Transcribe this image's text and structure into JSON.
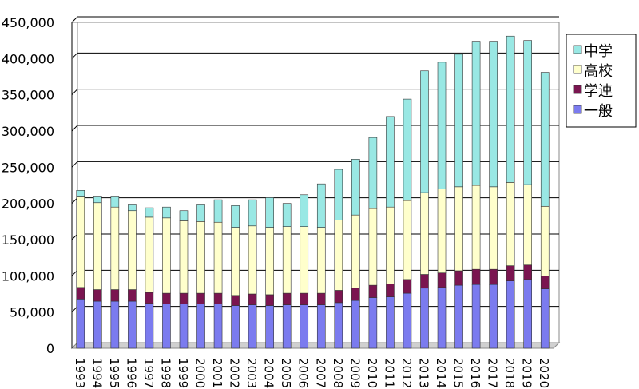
{
  "chart_data": {
    "type": "bar",
    "stacked": true,
    "grid": true,
    "legend_position": "right",
    "ylim": [
      0,
      450000
    ],
    "yticks": [
      "0",
      "50,000",
      "100,000",
      "150,000",
      "200,000",
      "250,000",
      "300,000",
      "350,000",
      "400,000",
      "450,000"
    ],
    "categories": [
      "1993",
      "1994",
      "1995",
      "1996",
      "1997",
      "1998",
      "1999",
      "2000",
      "2001",
      "2002",
      "2003",
      "2004",
      "2005",
      "2006",
      "2007",
      "2008",
      "2009",
      "2010",
      "2011",
      "2012",
      "2013",
      "2014",
      "2015",
      "2016",
      "2017",
      "2018",
      "2019",
      "2020"
    ],
    "series": [
      {
        "name": "一般",
        "color": "#7b7bef",
        "values": [
          68000,
          65000,
          65000,
          65000,
          62000,
          61000,
          61000,
          61000,
          61000,
          59000,
          60000,
          59000,
          60000,
          60000,
          60000,
          63000,
          66000,
          70000,
          71000,
          76000,
          83000,
          84000,
          87000,
          88000,
          88000,
          93000,
          95000,
          82000
        ]
      },
      {
        "name": "学連",
        "color": "#7a1550",
        "values": [
          16000,
          16000,
          16000,
          16000,
          15000,
          15000,
          15000,
          15000,
          15000,
          14000,
          15000,
          15000,
          16000,
          16000,
          16000,
          17000,
          17000,
          17000,
          18000,
          19000,
          19000,
          20000,
          20000,
          21000,
          21000,
          21000,
          20000,
          18000
        ]
      },
      {
        "name": "高校",
        "color": "#ffffcc",
        "values": [
          125000,
          120000,
          114000,
          109000,
          104000,
          104000,
          100000,
          99000,
          98000,
          94000,
          94000,
          93000,
          92000,
          92000,
          91000,
          97000,
          101000,
          106000,
          106000,
          109000,
          113000,
          116000,
          116000,
          116000,
          114000,
          115000,
          111000,
          96000
        ]
      },
      {
        "name": "中学",
        "color": "#99e8e4",
        "values": [
          9000,
          8000,
          14000,
          8000,
          13000,
          15000,
          14000,
          23000,
          31000,
          30000,
          36000,
          41000,
          32000,
          44000,
          60000,
          70000,
          77000,
          98000,
          125000,
          140000,
          168000,
          175000,
          183000,
          199000,
          201000,
          202000,
          199000,
          185000
        ]
      }
    ]
  }
}
